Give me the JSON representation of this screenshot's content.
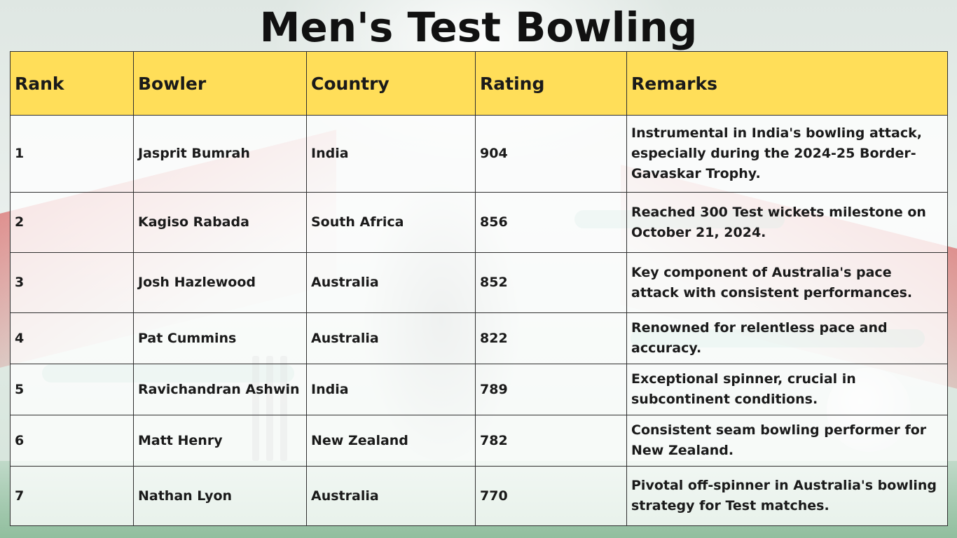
{
  "title": "Men's Test Bowling",
  "table": {
    "headers": [
      "Rank",
      "Bowler",
      "Country",
      "Rating",
      "Remarks"
    ],
    "rows": [
      {
        "rank": "1",
        "bowler": "Jasprit Bumrah",
        "country": "India",
        "rating": "904",
        "remarks": "Instrumental in India's bowling attack, especially during the 2024-25 Border-Gavaskar Trophy."
      },
      {
        "rank": "2",
        "bowler": "Kagiso Rabada",
        "country": "South Africa",
        "rating": "856",
        "remarks": "Reached 300 Test wickets milestone on October 21, 2024."
      },
      {
        "rank": "3",
        "bowler": "Josh Hazlewood",
        "country": "Australia",
        "rating": "852",
        "remarks": "Key component of Australia's pace attack with consistent performances."
      },
      {
        "rank": "4",
        "bowler": "Pat Cummins",
        "country": "Australia",
        "rating": "822",
        "remarks": "Renowned for relentless pace and accuracy."
      },
      {
        "rank": "5",
        "bowler": "Ravichandran Ashwin",
        "country": "India",
        "rating": "789",
        "remarks": "Exceptional spinner, crucial in subcontinent conditions."
      },
      {
        "rank": "6",
        "bowler": "Matt Henry",
        "country": "New Zealand",
        "rating": "782",
        "remarks": "Consistent seam bowling performer for New Zealand."
      },
      {
        "rank": "7",
        "bowler": "Nathan Lyon",
        "country": "Australia",
        "rating": "770",
        "remarks": "Pivotal off-spinner in Australia's bowling strategy for Test matches."
      }
    ]
  },
  "colors": {
    "header_bg": "#ffde59",
    "border": "#2f2f2f",
    "text": "#1a1a1a"
  }
}
